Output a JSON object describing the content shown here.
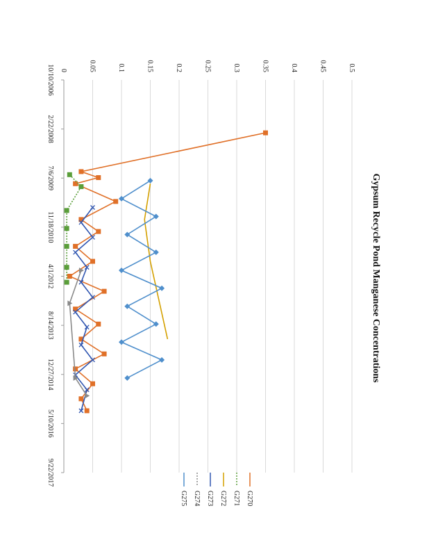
{
  "chart_data": {
    "type": "line",
    "title": "Gypsum Recycle Pond Manganese Concentrations",
    "xlabel": "",
    "ylabel": "",
    "ylim": [
      0,
      0.5
    ],
    "yticks": [
      "0",
      "0.05",
      "0.1",
      "0.15",
      "0.2",
      "0.25",
      "0.3",
      "0.35",
      "0.4",
      "0.45",
      "0.5"
    ],
    "xticks": [
      "10/10/2006",
      "2/22/2008",
      "7/6/2009",
      "11/18/2010",
      "4/1/2012",
      "8/14/2013",
      "12/27/2014",
      "5/10/2016",
      "9/22/2017"
    ],
    "xlim": [
      "2006-10-10",
      "2017-09-22"
    ],
    "grid": true,
    "legend_position": "right",
    "series": [
      {
        "name": "G270",
        "color": "#e07028",
        "marker": "square",
        "x": [
          "2008-04-01",
          "2009-05-01",
          "2009-07-01",
          "2009-09-01",
          "2010-03-01",
          "2010-09-01",
          "2011-01-01",
          "2011-06-01",
          "2011-11-01",
          "2012-04-01",
          "2012-09-01",
          "2013-03-01",
          "2013-08-01",
          "2014-01-01",
          "2014-06-01",
          "2014-11-01",
          "2015-04-01",
          "2015-09-01",
          "2016-01-01"
        ],
        "y": [
          0.35,
          0.03,
          0.06,
          0.02,
          0.09,
          0.03,
          0.06,
          0.02,
          0.05,
          0.01,
          0.07,
          0.02,
          0.06,
          0.03,
          0.07,
          0.02,
          0.05,
          0.03,
          0.04
        ]
      },
      {
        "name": "G271",
        "color": "#5a9e3a",
        "marker": "square",
        "x": [
          "2009-06-01",
          "2009-10-01",
          "2010-06-01",
          "2010-12-01",
          "2011-06-01",
          "2012-01-01",
          "2012-06-01"
        ],
        "y": [
          0.01,
          0.03,
          0.005,
          0.005,
          0.005,
          0.005,
          0.005
        ]
      },
      {
        "name": "G272",
        "color": "#d4a000",
        "marker": "none",
        "x": [
          "2009-09-01",
          "2010-09-01",
          "2011-11-01",
          "2014-01-01"
        ],
        "y": [
          0.15,
          0.14,
          0.15,
          0.18
        ]
      },
      {
        "name": "G273",
        "color": "#2f55b0",
        "marker": "x",
        "x": [
          "2010-05-01",
          "2010-10-01",
          "2011-03-01",
          "2011-08-01",
          "2012-01-01",
          "2012-06-01",
          "2012-11-01",
          "2013-04-01",
          "2013-09-01",
          "2014-03-01",
          "2014-08-01",
          "2015-01-01",
          "2015-06-01",
          "2016-01-01"
        ],
        "y": [
          0.05,
          0.03,
          0.05,
          0.02,
          0.04,
          0.03,
          0.05,
          0.02,
          0.04,
          0.03,
          0.05,
          0.02,
          0.04,
          0.03
        ]
      },
      {
        "name": "G274",
        "color": "#8a8a8a",
        "marker": "triangle",
        "x": [
          "2012-02-01",
          "2013-01-01",
          "2015-02-01",
          "2015-08-01"
        ],
        "y": [
          0.03,
          0.01,
          0.02,
          0.04
        ]
      },
      {
        "name": "G275",
        "color": "#4f8fcc",
        "marker": "diamond",
        "x": [
          "2009-08-01",
          "2010-02-01",
          "2010-08-01",
          "2011-02-01",
          "2011-08-01",
          "2012-02-01",
          "2012-08-01",
          "2013-02-01",
          "2013-08-01",
          "2014-02-01",
          "2014-08-01",
          "2015-02-01"
        ],
        "y": [
          0.15,
          0.1,
          0.16,
          0.11,
          0.16,
          0.1,
          0.17,
          0.11,
          0.16,
          0.1,
          0.17,
          0.11
        ]
      }
    ]
  }
}
